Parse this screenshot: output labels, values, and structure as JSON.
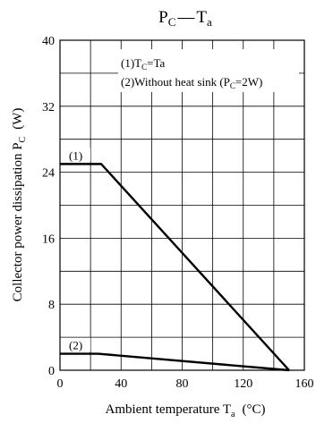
{
  "chart_data": {
    "type": "line",
    "title": {
      "main": "P",
      "main_sub": "C",
      "dash": "—",
      "second": "T",
      "second_sub": "a"
    },
    "xlabel": {
      "text": "Ambient temperature  T",
      "sub": "a",
      "unit": "(°C)"
    },
    "ylabel": {
      "text": "Collector power dissipation  P",
      "sub": "C",
      "unit": "(W)"
    },
    "xlim": [
      0,
      160
    ],
    "ylim": [
      0,
      40
    ],
    "xticks": [
      0,
      40,
      80,
      120,
      160
    ],
    "yticks": [
      0,
      8,
      16,
      24,
      32,
      40
    ],
    "grid": true,
    "x_grid_step": 20,
    "y_grid_step": 4,
    "series": [
      {
        "name": "(1)",
        "x": [
          0,
          27,
          150
        ],
        "y": [
          25,
          25,
          0
        ]
      },
      {
        "name": "(2)",
        "x": [
          0,
          25,
          150
        ],
        "y": [
          2,
          2,
          0
        ]
      }
    ],
    "legend": {
      "position": "top-right",
      "line1": {
        "prefix": "(1)T",
        "sub": "C",
        "suffix": "=Ta"
      },
      "line2": {
        "prefix": "(2)Without heat sink (P",
        "sub": "C",
        "suffix": "=2W)"
      }
    }
  }
}
